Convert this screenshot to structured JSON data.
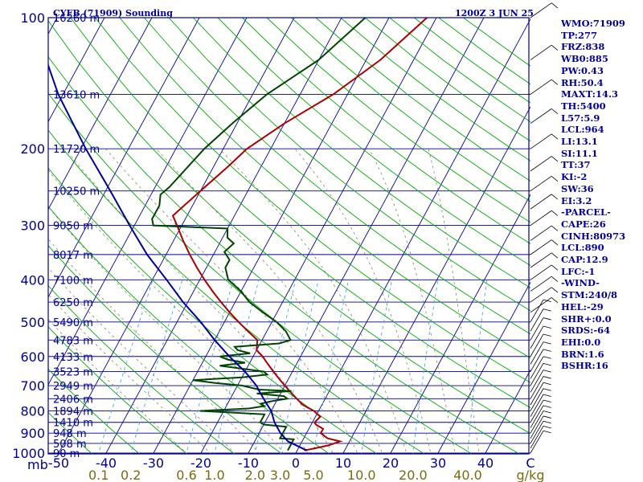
{
  "chart_data": {
    "type": "line",
    "title": "CYFB (71909) Sounding",
    "time_label": "1200Z  3 JUN 25",
    "xlabel": "",
    "ylabel": "",
    "ylim": [
      1000,
      100
    ],
    "xlim": [
      -50,
      50
    ],
    "y_ticks": [
      "100",
      "200",
      "300",
      "400",
      "500",
      "600",
      "700",
      "800",
      "900",
      "1000"
    ],
    "y_unit": "mb",
    "x_ticks": [
      "-50",
      "-40",
      "-30",
      "-20",
      "-10",
      "0",
      "10",
      "20",
      "30",
      "40",
      "C"
    ],
    "mixing_ratio_ticks": [
      "0.1",
      "0.2",
      "0.6",
      "1.0",
      "2.0",
      "3.0",
      "5.0",
      "10.0",
      "20.0",
      "40.0",
      "g/kg"
    ],
    "height_labels": [
      {
        "p": 100,
        "label": "16260 m"
      },
      {
        "p": 150,
        "label": "13610 m"
      },
      {
        "p": 200,
        "label": "11720 m"
      },
      {
        "p": 250,
        "label": "10250 m"
      },
      {
        "p": 300,
        "label": "9050 m"
      },
      {
        "p": 350,
        "label": "8017 m"
      },
      {
        "p": 400,
        "label": "7100 m"
      },
      {
        "p": 450,
        "label": "6250 m"
      },
      {
        "p": 500,
        "label": "5490 m"
      },
      {
        "p": 550,
        "label": "4783 m"
      },
      {
        "p": 600,
        "label": "4133 m"
      },
      {
        "p": 650,
        "label": "3523 m"
      },
      {
        "p": 700,
        "label": "2949 m"
      },
      {
        "p": 750,
        "label": "2406 m"
      },
      {
        "p": 800,
        "label": "1894 m"
      },
      {
        "p": 850,
        "label": "1410 m"
      },
      {
        "p": 900,
        "label": "948 m"
      },
      {
        "p": 950,
        "label": "508 m"
      },
      {
        "p": 1000,
        "label": "90 m"
      }
    ],
    "series": [
      {
        "color": "#aa0000",
        "values": [
          [
            986,
            1.5
          ],
          [
            975,
            3.5
          ],
          [
            960,
            6
          ],
          [
            940,
            8
          ],
          [
            925,
            5
          ],
          [
            900,
            3
          ],
          [
            880,
            3
          ],
          [
            860,
            1
          ],
          [
            850,
            0.5
          ],
          [
            825,
            1
          ],
          [
            800,
            -1
          ],
          [
            775,
            -4
          ],
          [
            750,
            -6
          ],
          [
            725,
            -8
          ],
          [
            700,
            -10
          ],
          [
            675,
            -12
          ],
          [
            650,
            -14
          ],
          [
            625,
            -16
          ],
          [
            600,
            -18
          ],
          [
            580,
            -20
          ],
          [
            550,
            -21
          ],
          [
            525,
            -24
          ],
          [
            500,
            -27
          ],
          [
            475,
            -30
          ],
          [
            450,
            -33
          ],
          [
            425,
            -36
          ],
          [
            400,
            -39
          ],
          [
            375,
            -42
          ],
          [
            350,
            -45
          ],
          [
            325,
            -48
          ],
          [
            300,
            -51
          ],
          [
            285,
            -53
          ],
          [
            250,
            -50
          ],
          [
            220,
            -47
          ],
          [
            200,
            -45
          ],
          [
            175,
            -40
          ],
          [
            150,
            -33
          ],
          [
            125,
            -27
          ],
          [
            100,
            -22
          ]
        ]
      },
      {
        "color": "#004400",
        "values": [
          [
            986,
            -2
          ],
          [
            960,
            -2
          ],
          [
            930,
            -2
          ],
          [
            925,
            -5
          ],
          [
            900,
            -5
          ],
          [
            870,
            -5
          ],
          [
            860,
            -10
          ],
          [
            850,
            -11
          ],
          [
            825,
            -11
          ],
          [
            815,
            -11
          ],
          [
            800,
            -25
          ],
          [
            790,
            -15
          ],
          [
            780,
            -12
          ],
          [
            770,
            -13
          ],
          [
            760,
            -11
          ],
          [
            750,
            -8
          ],
          [
            740,
            -9
          ],
          [
            730,
            -15
          ],
          [
            720,
            -8
          ],
          [
            715,
            -15
          ],
          [
            700,
            -19
          ],
          [
            690,
            -25
          ],
          [
            680,
            -30
          ],
          [
            670,
            -20
          ],
          [
            660,
            -15
          ],
          [
            650,
            -16
          ],
          [
            640,
            -21
          ],
          [
            630,
            -26
          ],
          [
            620,
            -21
          ],
          [
            610,
            -25
          ],
          [
            600,
            -27
          ],
          [
            590,
            -21
          ],
          [
            580,
            -24
          ],
          [
            570,
            -25
          ],
          [
            560,
            -16
          ],
          [
            550,
            -14
          ],
          [
            525,
            -16
          ],
          [
            500,
            -19
          ],
          [
            475,
            -23
          ],
          [
            450,
            -27
          ],
          [
            425,
            -30
          ],
          [
            400,
            -34
          ],
          [
            375,
            -36
          ],
          [
            360,
            -36
          ],
          [
            345,
            -38
          ],
          [
            330,
            -37
          ],
          [
            320,
            -39
          ],
          [
            305,
            -40
          ],
          [
            300,
            -56
          ],
          [
            290,
            -57
          ],
          [
            270,
            -57
          ],
          [
            255,
            -58
          ],
          [
            245,
            -57
          ],
          [
            200,
            -54
          ],
          [
            175,
            -51
          ],
          [
            150,
            -47
          ],
          [
            125,
            -40
          ],
          [
            100,
            -35
          ]
        ]
      },
      {
        "color": "#000099",
        "values": [
          [
            986,
            2
          ],
          [
            940,
            -3
          ],
          [
            900,
            -5.5
          ],
          [
            850,
            -8
          ],
          [
            800,
            -10
          ],
          [
            750,
            -13
          ],
          [
            700,
            -16
          ],
          [
            650,
            -20
          ],
          [
            600,
            -25
          ],
          [
            550,
            -30
          ],
          [
            500,
            -35
          ],
          [
            450,
            -41
          ],
          [
            400,
            -47
          ],
          [
            350,
            -54
          ],
          [
            300,
            -61
          ],
          [
            250,
            -69
          ],
          [
            200,
            -79
          ],
          [
            150,
            -91
          ],
          [
            110,
            -102
          ]
        ]
      }
    ]
  },
  "sidebar": [
    "WMO:71909",
    "TP:277",
    "FRZ:838",
    "WB0:885",
    "PW:0.43",
    "RH:50.4",
    "MAXT:14.3",
    "TH:5400",
    "L57:5.9",
    "LCL:964",
    "LI:13.1",
    "SI:11.1",
    "TT:37",
    "KI:-2",
    "SW:36",
    "EI:3.2",
    "-PARCEL-",
    "CAPE:26",
    "CINH:80973",
    "LCL:890",
    "CAP:12.9",
    "LFC:-1",
    "-WIND-",
    "STM:240/8",
    "HEL:-29",
    "SHR+:0.0",
    "SRDS:-64",
    "EHI:0.0",
    "BRN:1.6",
    "BSHR:16"
  ],
  "colors": {
    "frame": "#000099",
    "isotherm": "#000099",
    "isobar": "#000099",
    "dry_adiabat": "#00aa00",
    "moist_adiabat": "#888866",
    "mixing_ratio": "#44aadd",
    "temperature": "#aa0000",
    "dewpoint": "#004400",
    "parcel": "#000099",
    "wind": "#000000"
  }
}
